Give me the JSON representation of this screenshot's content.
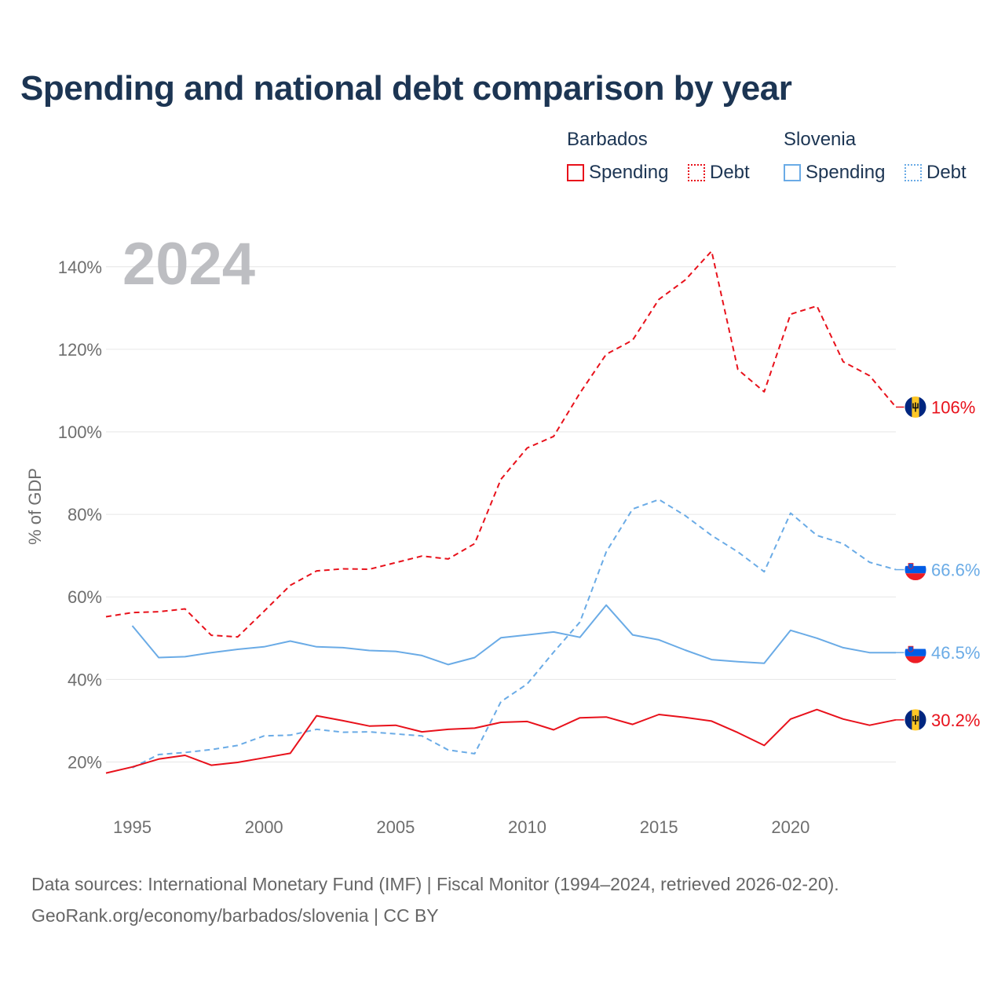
{
  "title": "Spending and national debt comparison by year",
  "legend": {
    "groups": [
      {
        "name": "Barbados",
        "color": "#e8111b",
        "items": [
          {
            "label": "Spending",
            "style": "solid"
          },
          {
            "label": "Debt",
            "style": "dotted"
          }
        ]
      },
      {
        "name": "Slovenia",
        "color": "#6aabe6",
        "items": [
          {
            "label": "Spending",
            "style": "solid"
          },
          {
            "label": "Debt",
            "style": "dotted"
          }
        ]
      }
    ]
  },
  "sources": {
    "line1": "Data sources: International Monetary Fund (IMF) | Fiscal Monitor (1994–2024, retrieved 2026-02-20).",
    "line2": "GeoRank.org/economy/barbados/slovenia | CC BY"
  },
  "chart_data": {
    "type": "line",
    "year_label": "2024",
    "ylabel": "% of GDP",
    "ylim": [
      10,
      147
    ],
    "xlim": [
      1994,
      2024
    ],
    "y_ticks": [
      20,
      40,
      60,
      80,
      100,
      120,
      140
    ],
    "y_tick_labels": [
      "20%",
      "40%",
      "60%",
      "80%",
      "100%",
      "120%",
      "140%"
    ],
    "x_ticks": [
      1995,
      2000,
      2005,
      2010,
      2015,
      2020
    ],
    "x_tick_labels": [
      "1995",
      "2000",
      "2005",
      "2010",
      "2015",
      "2020"
    ],
    "series": [
      {
        "name": "Barbados Debt",
        "country": "Barbados",
        "color": "#e8111b",
        "dash": true,
        "end_label": "106%",
        "start_year": 1994,
        "values": [
          55.2,
          56.2,
          56.4,
          57.1,
          50.7,
          50.3,
          56.5,
          62.8,
          66.3,
          66.8,
          66.7,
          68.3,
          69.9,
          69.2,
          72.9,
          88.5,
          96.1,
          98.9,
          109.4,
          118.8,
          122.2,
          132.1,
          136.8,
          143.8,
          115.1,
          109.7,
          128.5,
          130.5,
          117.0,
          113.6,
          106.0
        ]
      },
      {
        "name": "Slovenia Debt",
        "country": "Slovenia",
        "color": "#6aabe6",
        "dash": true,
        "end_label": "66.6%",
        "start_year": 1995,
        "values": [
          18.6,
          21.8,
          22.3,
          23.0,
          24.0,
          26.3,
          26.5,
          27.9,
          27.2,
          27.3,
          26.8,
          26.3,
          22.9,
          22.0,
          34.6,
          38.9,
          46.6,
          53.9,
          70.9,
          81.3,
          83.6,
          79.7,
          74.9,
          70.9,
          66.1,
          80.3,
          74.9,
          72.9,
          68.4,
          66.6
        ]
      },
      {
        "name": "Slovenia Spending",
        "country": "Slovenia",
        "color": "#6aabe6",
        "dash": false,
        "end_label": "46.5%",
        "start_year": 1995,
        "values": [
          53.0,
          45.3,
          45.5,
          46.5,
          47.3,
          47.9,
          49.3,
          47.9,
          47.7,
          47.0,
          46.8,
          45.8,
          43.6,
          45.3,
          50.1,
          50.8,
          51.5,
          50.2,
          58.0,
          50.8,
          49.6,
          47.1,
          44.8,
          44.3,
          43.9,
          51.9,
          50.0,
          47.7,
          46.5,
          46.5
        ]
      },
      {
        "name": "Barbados Spending",
        "country": "Barbados",
        "color": "#e8111b",
        "dash": false,
        "end_label": "30.2%",
        "start_year": 1994,
        "values": [
          17.3,
          18.8,
          20.7,
          21.6,
          19.2,
          19.9,
          21.0,
          22.1,
          31.2,
          30.0,
          28.7,
          28.9,
          27.3,
          27.9,
          28.2,
          29.6,
          29.8,
          27.8,
          30.7,
          30.9,
          29.1,
          31.5,
          30.8,
          29.9,
          27.1,
          24.0,
          30.4,
          32.7,
          30.4,
          28.9,
          30.2
        ]
      }
    ]
  }
}
